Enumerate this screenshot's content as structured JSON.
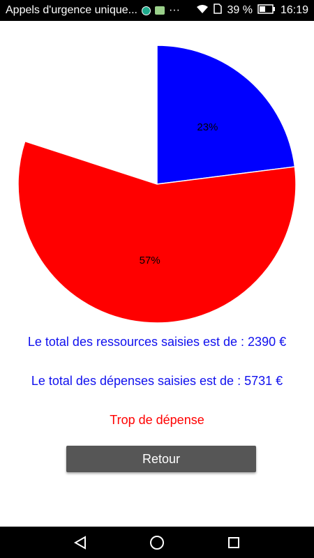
{
  "status_bar": {
    "title": "Appels d'urgence unique...",
    "battery": "39 %",
    "time": "16:19",
    "icons": [
      "app-icon",
      "android-icon",
      "more-icon",
      "wifi-icon",
      "sim-icon",
      "battery-icon"
    ]
  },
  "chart_data": {
    "type": "pie",
    "slices": [
      {
        "label": "23%",
        "value": 23,
        "color": "#0000ff"
      },
      {
        "label": "57%",
        "value": 57,
        "color": "#ff0000"
      }
    ],
    "empty_value": 20
  },
  "summary": {
    "ressources_text": "Le total des ressources saisies est de : 2390 €",
    "depenses_text": "Le total des dépenses saisies est de : 5731 €",
    "status_text": "Trop de dépense",
    "status_color": "#ff0000",
    "text_color": "#1010ee"
  },
  "actions": {
    "back_label": "Retour"
  },
  "navigation": {
    "icons": [
      "back-icon",
      "home-icon",
      "recents-icon"
    ]
  }
}
